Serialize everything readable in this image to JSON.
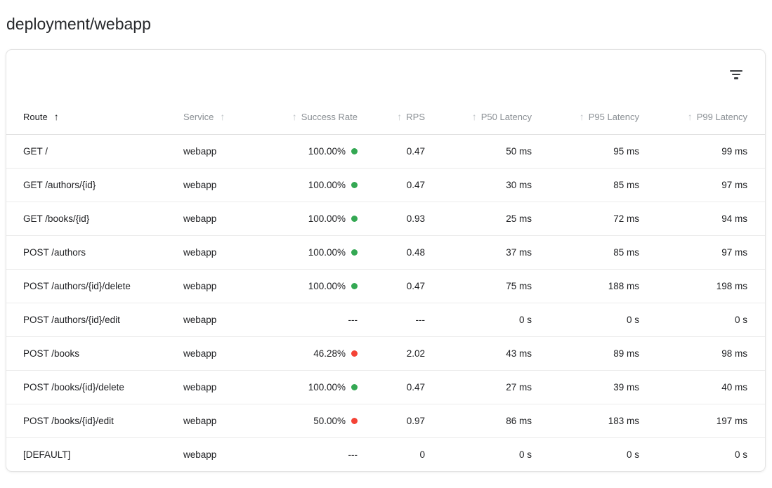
{
  "page": {
    "title": "deployment/webapp"
  },
  "icons": {
    "sort": "↑",
    "filter": "filter-list"
  },
  "colors": {
    "green": "#34a853",
    "red": "#f44336"
  },
  "card": {
    "table": {
      "columns": [
        {
          "field": "route",
          "label": "Route",
          "align": "left",
          "arrow": "after",
          "sorted": true
        },
        {
          "field": "service",
          "label": "Service",
          "align": "left",
          "arrow": "after",
          "sorted": false
        },
        {
          "field": "success_rate",
          "label": "Success Rate",
          "align": "right",
          "arrow": "before",
          "sorted": false
        },
        {
          "field": "rps",
          "label": "RPS",
          "align": "right",
          "arrow": "before",
          "sorted": false
        },
        {
          "field": "p50",
          "label": "P50 Latency",
          "align": "right",
          "arrow": "before",
          "sorted": false
        },
        {
          "field": "p95",
          "label": "P95 Latency",
          "align": "right",
          "arrow": "before",
          "sorted": false
        },
        {
          "field": "p99",
          "label": "P99 Latency",
          "align": "right",
          "arrow": "before",
          "sorted": false
        }
      ],
      "rows": [
        {
          "route": "GET /",
          "service": "webapp",
          "success_rate": "100.00%",
          "status": "green",
          "rps": "0.47",
          "p50": "50 ms",
          "p95": "95 ms",
          "p99": "99 ms"
        },
        {
          "route": "GET /authors/{id}",
          "service": "webapp",
          "success_rate": "100.00%",
          "status": "green",
          "rps": "0.47",
          "p50": "30 ms",
          "p95": "85 ms",
          "p99": "97 ms"
        },
        {
          "route": "GET /books/{id}",
          "service": "webapp",
          "success_rate": "100.00%",
          "status": "green",
          "rps": "0.93",
          "p50": "25 ms",
          "p95": "72 ms",
          "p99": "94 ms"
        },
        {
          "route": "POST /authors",
          "service": "webapp",
          "success_rate": "100.00%",
          "status": "green",
          "rps": "0.48",
          "p50": "37 ms",
          "p95": "85 ms",
          "p99": "97 ms"
        },
        {
          "route": "POST /authors/{id}/delete",
          "service": "webapp",
          "success_rate": "100.00%",
          "status": "green",
          "rps": "0.47",
          "p50": "75 ms",
          "p95": "188 ms",
          "p99": "198 ms"
        },
        {
          "route": "POST /authors/{id}/edit",
          "service": "webapp",
          "success_rate": "---",
          "status": null,
          "rps": "---",
          "p50": "0 s",
          "p95": "0 s",
          "p99": "0 s"
        },
        {
          "route": "POST /books",
          "service": "webapp",
          "success_rate": "46.28%",
          "status": "red",
          "rps": "2.02",
          "p50": "43 ms",
          "p95": "89 ms",
          "p99": "98 ms"
        },
        {
          "route": "POST /books/{id}/delete",
          "service": "webapp",
          "success_rate": "100.00%",
          "status": "green",
          "rps": "0.47",
          "p50": "27 ms",
          "p95": "39 ms",
          "p99": "40 ms"
        },
        {
          "route": "POST /books/{id}/edit",
          "service": "webapp",
          "success_rate": "50.00%",
          "status": "red",
          "rps": "0.97",
          "p50": "86 ms",
          "p95": "183 ms",
          "p99": "197 ms"
        },
        {
          "route": "[DEFAULT]",
          "service": "webapp",
          "success_rate": "---",
          "status": null,
          "rps": "0",
          "p50": "0 s",
          "p95": "0 s",
          "p99": "0 s"
        }
      ]
    }
  }
}
